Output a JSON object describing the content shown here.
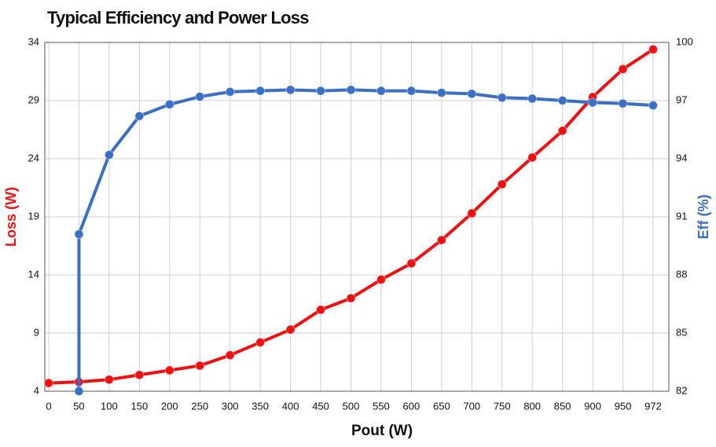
{
  "chart_data": {
    "type": "line",
    "title": "Typical Efficiency and Power Loss",
    "xlabel": "Pout (W)",
    "ylabel": "Loss (W)",
    "y2label": "Eff (%)",
    "categories": [
      0,
      50,
      100,
      150,
      200,
      250,
      300,
      350,
      400,
      450,
      500,
      550,
      600,
      650,
      700,
      750,
      800,
      850,
      900,
      950,
      972
    ],
    "ylim": [
      4,
      34
    ],
    "yticks": [
      4,
      9,
      14,
      19,
      24,
      29,
      34
    ],
    "y2lim": [
      82,
      100
    ],
    "y2ticks": [
      82,
      85,
      88,
      91,
      94,
      97,
      100
    ],
    "grid": true,
    "series": [
      {
        "color": "#ee1111",
        "values": [
          4.7,
          4.8,
          5.0,
          5.4,
          5.8,
          6.2,
          7.1,
          8.2,
          9.3,
          11.0,
          12.0,
          13.6,
          15.0,
          17.0,
          19.3,
          21.8,
          24.1,
          26.4,
          29.3,
          31.7,
          33.4
        ]
      },
      {
        "color": "#3a6fc4",
        "axis": "y2",
        "x": [
          50,
          50,
          100,
          150,
          200,
          250,
          300,
          350,
          400,
          450,
          500,
          550,
          600,
          650,
          700,
          750,
          800,
          850,
          900,
          950,
          972
        ],
        "values": [
          82,
          90.1,
          94.2,
          96.2,
          96.8,
          97.2,
          97.45,
          97.5,
          97.55,
          97.5,
          97.55,
          97.5,
          97.5,
          97.4,
          97.35,
          97.15,
          97.1,
          97.0,
          96.9,
          96.85,
          96.75
        ]
      }
    ]
  }
}
